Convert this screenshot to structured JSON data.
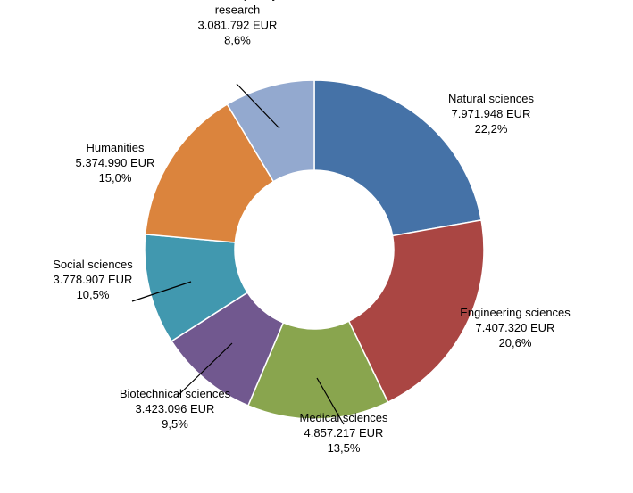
{
  "chart_data": {
    "type": "pie",
    "variant": "donut",
    "legend": "none",
    "series": [
      {
        "name": "Natural sciences",
        "label_lines": [
          "Natural sciences"
        ],
        "amount": "7.971.948 EUR",
        "percent_label": "22,2%",
        "value": 7971948,
        "color": "#4572A7"
      },
      {
        "name": "Engineering sciences",
        "label_lines": [
          "Engineering sciences"
        ],
        "amount": "7.407.320 EUR",
        "percent_label": "20,6%",
        "value": 7407320,
        "color": "#AA4643"
      },
      {
        "name": "Medical sciences",
        "label_lines": [
          "Medical sciences"
        ],
        "amount": "4.857.217 EUR",
        "percent_label": "13,5%",
        "value": 4857217,
        "color": "#89A54E"
      },
      {
        "name": "Biotechnical sciences",
        "label_lines": [
          "Biotechnical sciences"
        ],
        "amount": "3.423.096 EUR",
        "percent_label": "9,5%",
        "value": 3423096,
        "color": "#71588F"
      },
      {
        "name": "Social sciences",
        "label_lines": [
          "Social sciences"
        ],
        "amount": "3.778.907 EUR",
        "percent_label": "10,5%",
        "value": 3778907,
        "color": "#4198AF"
      },
      {
        "name": "Humanities",
        "label_lines": [
          "Humanities"
        ],
        "amount": "5.374.990 EUR",
        "percent_label": "15,0%",
        "value": 5374990,
        "color": "#DB843D"
      },
      {
        "name": "Interdisciplinary research",
        "label_lines": [
          "Interdisciplinary",
          "research"
        ],
        "amount": "3.081.792 EUR",
        "percent_label": "8,6%",
        "value": 3081792,
        "color": "#93A9CF"
      }
    ]
  }
}
